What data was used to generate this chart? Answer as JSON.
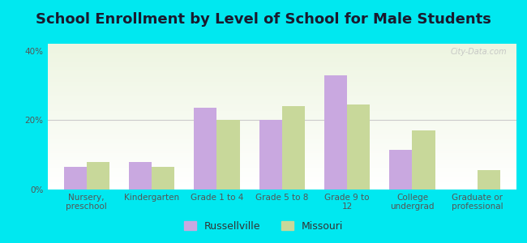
{
  "title": "School Enrollment by Level of School for Male Students",
  "categories": [
    "Nursery,\npreschool",
    "Kindergarten",
    "Grade 1 to 4",
    "Grade 5 to 8",
    "Grade 9 to\n12",
    "College\nundergrad",
    "Graduate or\nprofessional"
  ],
  "russellville": [
    6.5,
    8.0,
    23.5,
    20.0,
    33.0,
    11.5,
    0.0
  ],
  "missouri": [
    8.0,
    6.5,
    20.0,
    24.0,
    24.5,
    17.0,
    5.5
  ],
  "bar_color_russellville": "#c9a8e0",
  "bar_color_missouri": "#c8d89a",
  "background_color": "#00e8f0",
  "ylabel_ticks": [
    "0%",
    "20%",
    "40%"
  ],
  "yticks": [
    0,
    20,
    40
  ],
  "ylim": [
    0,
    42
  ],
  "legend_russellville": "Russellville",
  "legend_missouri": "Missouri",
  "title_fontsize": 13,
  "tick_fontsize": 7.5,
  "legend_fontsize": 9,
  "bar_width": 0.35,
  "watermark": "City-Data.com"
}
